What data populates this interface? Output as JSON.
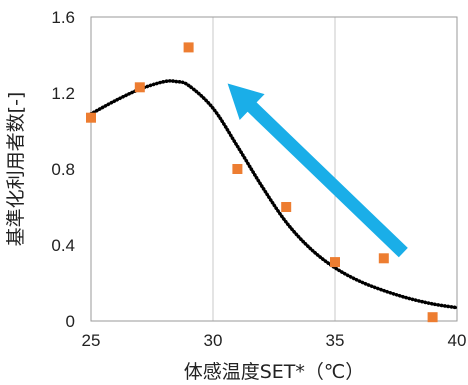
{
  "chart_data": {
    "type": "scatter",
    "xlabel": "体感温度SET*（℃）",
    "ylabel": "基準化利用者数[-]",
    "xlim": [
      25,
      40
    ],
    "ylim": [
      0,
      1.6
    ],
    "x_ticks": [
      "25",
      "30",
      "35",
      "40"
    ],
    "y_ticks": [
      "0",
      "0.4",
      "0.8",
      "1.2",
      "1.6"
    ],
    "grid": "vertical",
    "series": [
      {
        "kind": "scatter",
        "marker": "square",
        "color": "#ed7d31",
        "points": [
          {
            "x": 25,
            "y": 1.07
          },
          {
            "x": 27,
            "y": 1.23
          },
          {
            "x": 29,
            "y": 1.44
          },
          {
            "x": 31,
            "y": 0.8
          },
          {
            "x": 33,
            "y": 0.6
          },
          {
            "x": 35,
            "y": 0.31
          },
          {
            "x": 37,
            "y": 0.33
          },
          {
            "x": 39,
            "y": 0.02
          }
        ]
      },
      {
        "kind": "line",
        "style": "dotted",
        "color": "#000000",
        "points": [
          {
            "x": 25,
            "y": 1.09
          },
          {
            "x": 26,
            "y": 1.16
          },
          {
            "x": 27,
            "y": 1.22
          },
          {
            "x": 28,
            "y": 1.26
          },
          {
            "x": 28.5,
            "y": 1.26
          },
          {
            "x": 29,
            "y": 1.24
          },
          {
            "x": 30,
            "y": 1.12
          },
          {
            "x": 31,
            "y": 0.92
          },
          {
            "x": 32,
            "y": 0.71
          },
          {
            "x": 33,
            "y": 0.52
          },
          {
            "x": 34,
            "y": 0.38
          },
          {
            "x": 35,
            "y": 0.28
          },
          {
            "x": 36,
            "y": 0.21
          },
          {
            "x": 37,
            "y": 0.16
          },
          {
            "x": 38,
            "y": 0.12
          },
          {
            "x": 39,
            "y": 0.09
          },
          {
            "x": 40,
            "y": 0.07
          }
        ]
      }
    ],
    "annotation": {
      "shape": "arrow",
      "color": "#1aaee8",
      "from": {
        "x": 37.8,
        "y": 0.36
      },
      "to": {
        "x": 30.6,
        "y": 1.25
      }
    }
  }
}
